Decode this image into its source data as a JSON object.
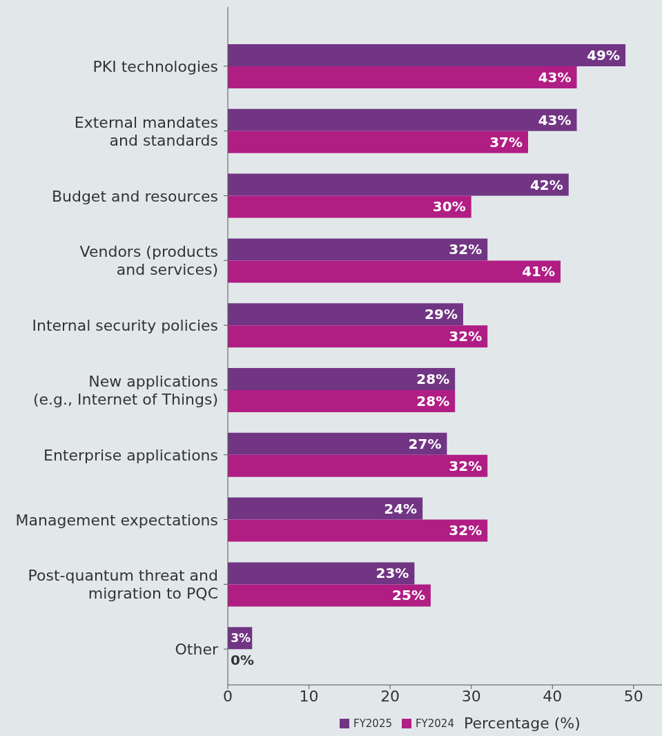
{
  "chart_data": {
    "type": "bar",
    "orientation": "horizontal",
    "categories": [
      "PKI technologies",
      "External mandates\nand standards",
      "Budget and resources",
      "Vendors (products\nand services)",
      "Internal security policies",
      "New applications\n(e.g., Internet of Things)",
      "Enterprise applications",
      "Management expectations",
      "Post-quantum threat and\nmigration to PQC",
      "Other"
    ],
    "series": [
      {
        "name": "FY2025",
        "color": "#713584",
        "values": [
          49,
          43,
          42,
          32,
          29,
          28,
          27,
          24,
          23,
          3
        ],
        "value_labels": [
          "49%",
          "43%",
          "42%",
          "32%",
          "29%",
          "28%",
          "27%",
          "24%",
          "23%",
          "3%"
        ]
      },
      {
        "name": "FY2024",
        "color": "#b01e84",
        "values": [
          43,
          37,
          30,
          41,
          32,
          28,
          32,
          32,
          25,
          0
        ],
        "value_labels": [
          "43%",
          "37%",
          "30%",
          "41%",
          "32%",
          "28%",
          "32%",
          "32%",
          "25%",
          "0%"
        ]
      }
    ],
    "xlabel": "Percentage (%)",
    "xlim": [
      0,
      53.5
    ],
    "xticks": [
      0,
      10,
      20,
      30,
      40,
      50
    ],
    "grid": false,
    "legend": "bottom"
  }
}
